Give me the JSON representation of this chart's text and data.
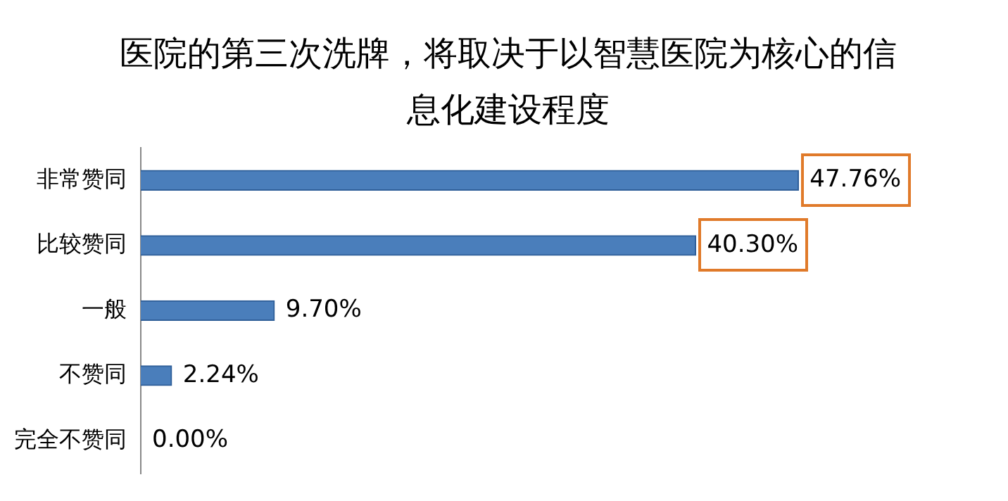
{
  "chart_data": {
    "type": "bar",
    "orientation": "horizontal",
    "title": "医院的第三次洗牌，将取决于以智慧医院为核心的信息化建设程度",
    "categories": [
      "非常赞同",
      "比较赞同",
      "一般",
      "不赞同",
      "完全不赞同"
    ],
    "values": [
      47.76,
      40.3,
      9.7,
      2.24,
      0.0
    ],
    "value_labels": [
      "47.76%",
      "40.30%",
      "9.70%",
      "2.24%",
      "0.00%"
    ],
    "color": "#4a7ebb",
    "grid": false,
    "legend": false
  }
}
